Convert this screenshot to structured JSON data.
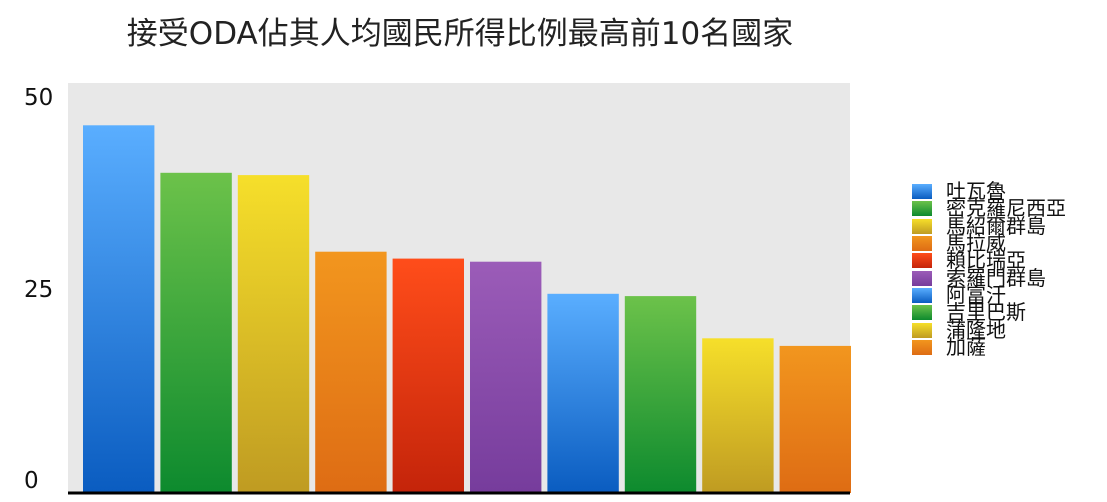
{
  "chart_data": {
    "type": "bar",
    "title": "接受ODA佔其人均國民所得比例最高前10名國家",
    "xlabel": "",
    "ylabel": "",
    "ylim": [
      0,
      50
    ],
    "yticks": [
      "0",
      "25",
      "50"
    ],
    "grid": false,
    "legend_position": "right",
    "plot_background": "#e8e8e8",
    "categories": [
      "吐瓦魯",
      "密克羅尼西亞",
      "馬紹爾群島",
      "馬拉威",
      "賴比瑞亞",
      "索羅門群島",
      "阿富汗",
      "吉里巴斯",
      "蒲隆地",
      "加薩"
    ],
    "values": [
      48.0,
      41.8,
      41.5,
      31.5,
      30.6,
      30.2,
      26.0,
      25.7,
      20.2,
      19.2
    ],
    "colors": [
      {
        "top": "#5aaeff",
        "bottom": "#0a5cc0"
      },
      {
        "top": "#6cc24a",
        "bottom": "#0d8a2e"
      },
      {
        "top": "#f6df2a",
        "bottom": "#bf9b22"
      },
      {
        "top": "#f2961e",
        "bottom": "#de6c14"
      },
      {
        "top": "#ff4d1a",
        "bottom": "#c4240a"
      },
      {
        "top": "#9b5cb8",
        "bottom": "#763c9c"
      },
      {
        "top": "#5aaeff",
        "bottom": "#0a5cc0"
      },
      {
        "top": "#6cc24a",
        "bottom": "#0d8a2e"
      },
      {
        "top": "#f6df2a",
        "bottom": "#bf9b22"
      },
      {
        "top": "#f2961e",
        "bottom": "#de6c14"
      }
    ]
  }
}
